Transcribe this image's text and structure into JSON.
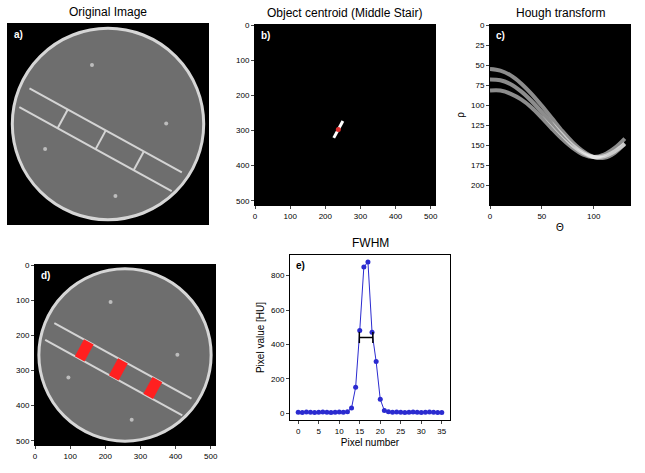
{
  "chart_data": [
    {
      "type": "image",
      "panel_label": "a)",
      "title": "Original Image",
      "xlim": [
        0,
        512
      ],
      "ylim": [
        512,
        0
      ],
      "tick_labels": false,
      "circle": {
        "center": [
          256,
          256
        ],
        "radius": 245
      },
      "rails": [
        [
          55,
          165,
          445,
          380
        ],
        [
          29,
          213,
          419,
          428
        ]
      ],
      "rungs": [
        [
          153,
          219,
          127,
          267
        ],
        [
          250,
          273,
          224,
          321
        ],
        [
          348,
          326,
          322,
          374
        ]
      ],
      "dots": [
        [
          215,
          105
        ],
        [
          405,
          255
        ],
        [
          95,
          320
        ],
        [
          275,
          440
        ]
      ]
    },
    {
      "type": "image",
      "panel_label": "b)",
      "title": "Object centroid (Middle Stair)",
      "xlim": [
        0,
        512
      ],
      "ylim": [
        512,
        0
      ],
      "xticks": [
        0,
        100,
        200,
        300,
        400,
        500
      ],
      "yticks": [
        0,
        100,
        200,
        300,
        400,
        500
      ],
      "segment": [
        250,
        273,
        224,
        321
      ],
      "centroid": [
        237,
        297
      ],
      "color": "#e03030"
    },
    {
      "type": "line",
      "panel_label": "c)",
      "title": "Hough transform",
      "x_label": "Θ",
      "y_label": "ρ",
      "xlim": [
        0,
        135
      ],
      "ylim": [
        225,
        0
      ],
      "xticks": [
        0,
        50,
        100
      ],
      "yticks": [
        0,
        25,
        50,
        75,
        100,
        125,
        150,
        175,
        200
      ],
      "x": [
        0,
        10,
        20,
        30,
        40,
        50,
        60,
        70,
        80,
        90,
        100,
        110,
        120,
        130
      ],
      "series": [
        {
          "values": [
            55,
            57,
            63,
            73,
            86,
            101,
            117,
            133,
            147,
            158,
            165,
            166,
            160,
            148
          ]
        },
        {
          "values": [
            68,
            69,
            74,
            83,
            95,
            109,
            124,
            138,
            151,
            160,
            165,
            164,
            158,
            149
          ]
        },
        {
          "values": [
            82,
            82,
            86,
            93,
            103,
            116,
            130,
            143,
            154,
            162,
            165,
            162,
            154,
            142
          ]
        }
      ],
      "color": "#ffffff"
    },
    {
      "type": "image",
      "panel_label": "d)",
      "xlim": [
        0,
        512
      ],
      "ylim": [
        512,
        0
      ],
      "xticks": [
        0,
        100,
        200,
        300,
        400,
        500
      ],
      "yticks": [
        0,
        100,
        200,
        300,
        400,
        500
      ],
      "circle": {
        "center": [
          256,
          256
        ],
        "radius": 245
      },
      "rails": [
        [
          55,
          165,
          445,
          380
        ],
        [
          29,
          213,
          419,
          428
        ]
      ],
      "rungs": [
        [
          153,
          219,
          127,
          267
        ],
        [
          250,
          273,
          224,
          321
        ],
        [
          348,
          326,
          322,
          374
        ]
      ],
      "dots": [
        [
          215,
          105
        ],
        [
          405,
          255
        ],
        [
          95,
          320
        ],
        [
          275,
          440
        ]
      ],
      "color": "#ff2020"
    },
    {
      "type": "line",
      "panel_label": "e)",
      "title": "FWHM",
      "x_label": "Pixel number",
      "y_label": "Pixel value [HU]",
      "xlim": [
        -2,
        37
      ],
      "ylim": [
        -40,
        920
      ],
      "xticks": [
        0,
        5,
        10,
        15,
        20,
        25,
        30,
        35
      ],
      "yticks": [
        0,
        200,
        400,
        600,
        800
      ],
      "x": [
        0,
        1,
        2,
        3,
        4,
        5,
        6,
        7,
        8,
        9,
        10,
        11,
        12,
        13,
        14,
        15,
        16,
        17,
        18,
        19,
        20,
        21,
        22,
        23,
        24,
        25,
        26,
        27,
        28,
        29,
        30,
        31,
        32,
        33,
        34,
        35
      ],
      "values": [
        5,
        4,
        6,
        5,
        4,
        5,
        6,
        5,
        4,
        5,
        6,
        5,
        8,
        30,
        150,
        480,
        850,
        880,
        470,
        300,
        80,
        15,
        8,
        5,
        6,
        5,
        4,
        5,
        6,
        5,
        4,
        5,
        6,
        5,
        4,
        3
      ],
      "color": "#2b2bd0",
      "marker": "circle",
      "fwhm": {
        "y": 440,
        "x": [
          14.9,
          18.2
        ]
      }
    }
  ]
}
